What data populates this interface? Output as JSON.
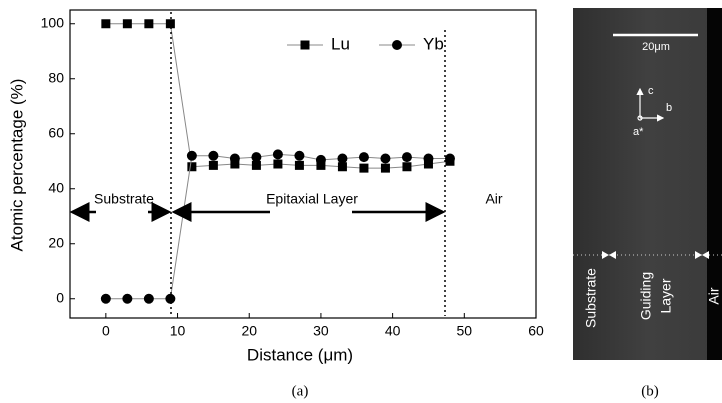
{
  "chart_data": {
    "type": "line",
    "x_label": "Distance (μm)",
    "y_label": "Atomic percentage (%)",
    "x": [
      0,
      3,
      6,
      9,
      12,
      15,
      18,
      21,
      24,
      27,
      30,
      33,
      36,
      39,
      42,
      45,
      48
    ],
    "series": [
      {
        "name": "Lu",
        "color": "#000000",
        "marker": "square",
        "values": [
          100,
          100,
          100,
          100,
          48,
          48.5,
          49,
          48.5,
          49,
          48.5,
          48.5,
          48,
          47.5,
          47.5,
          48,
          49,
          50
        ]
      },
      {
        "name": "Yb",
        "color": "#000000",
        "marker": "circle",
        "values": [
          0,
          0,
          0,
          0,
          52,
          52,
          51,
          51.5,
          52.5,
          52,
          50.5,
          51,
          51.5,
          51,
          51.5,
          51,
          51
        ]
      }
    ],
    "xlim": [
      -5,
      60
    ],
    "xticks": [
      0,
      10,
      20,
      30,
      40,
      50,
      60
    ],
    "ylim": [
      -7,
      105
    ],
    "yticks": [
      0,
      20,
      40,
      60,
      80,
      100
    ],
    "annotations": [
      "Substrate",
      "Epitaxial Layer",
      "Air"
    ]
  },
  "panel_b": {
    "scale_bar": "20μm",
    "axes": [
      "c",
      "b",
      "a*"
    ],
    "regions": [
      "Substrate",
      "Guiding",
      "Layer",
      "Air"
    ]
  },
  "captions": [
    "(a)",
    "(b)"
  ]
}
